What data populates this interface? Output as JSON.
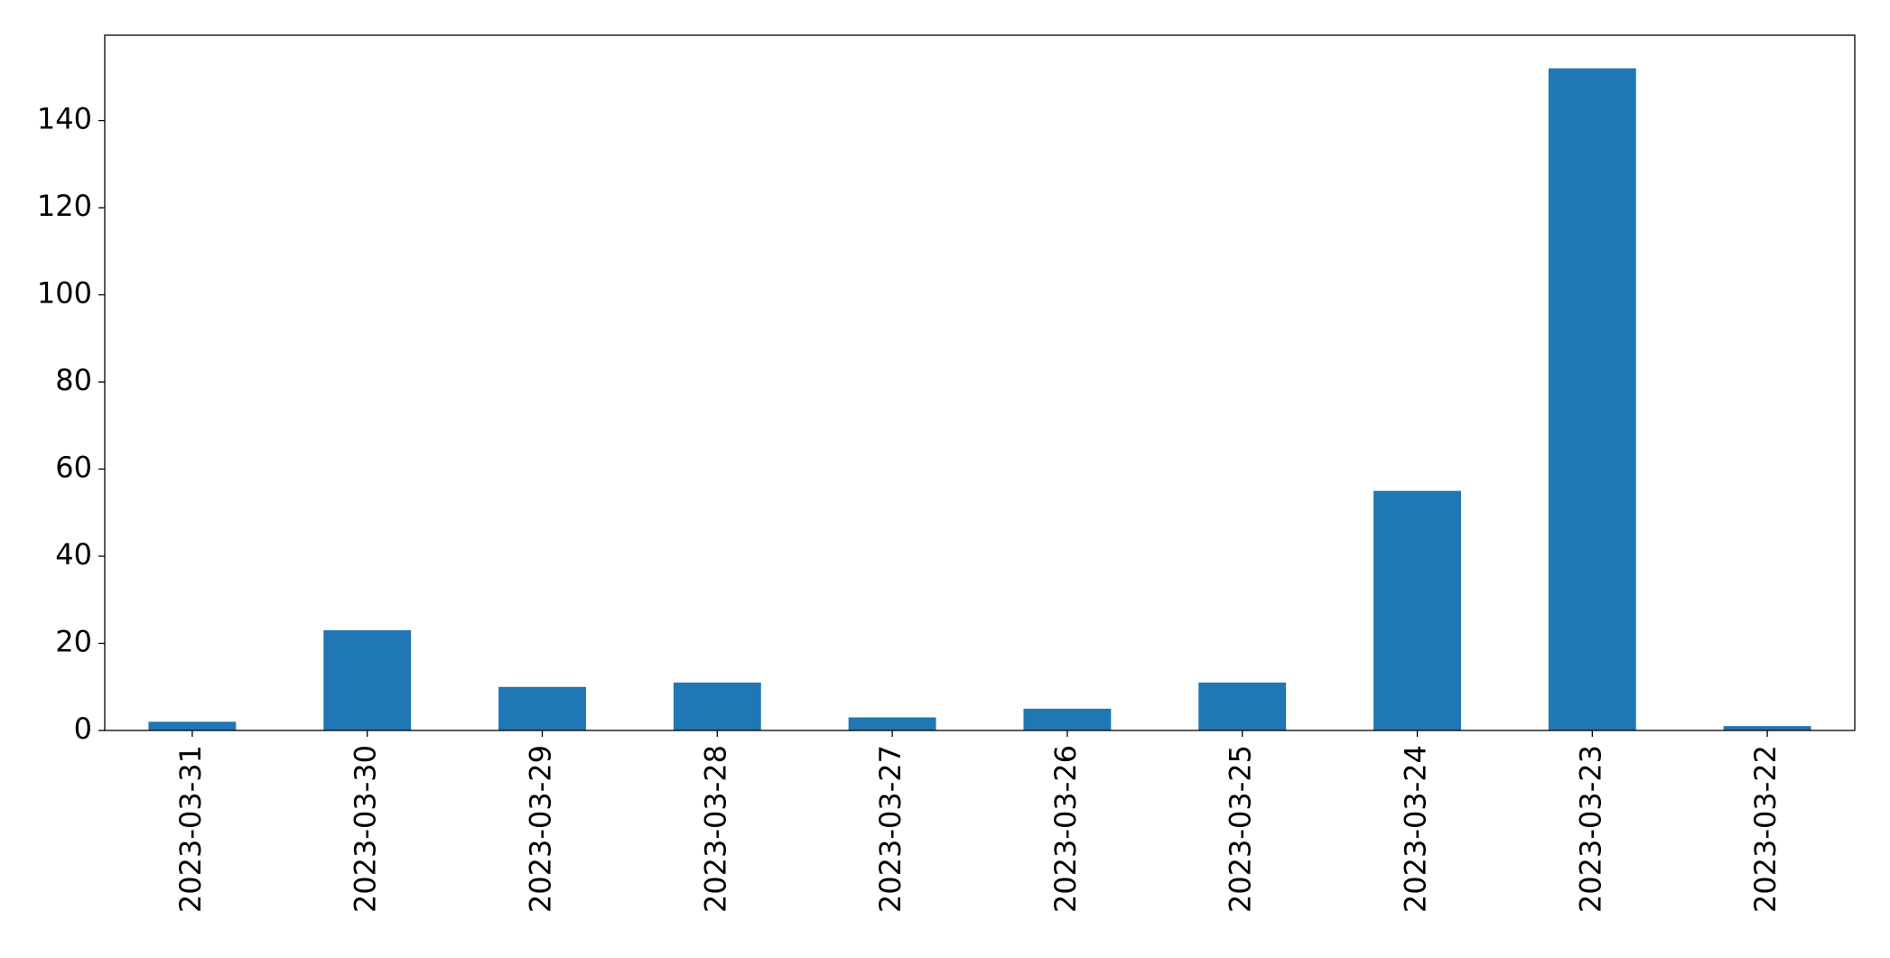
{
  "chart_data": {
    "type": "bar",
    "categories": [
      "2023-03-31",
      "2023-03-30",
      "2023-03-29",
      "2023-03-28",
      "2023-03-27",
      "2023-03-26",
      "2023-03-25",
      "2023-03-24",
      "2023-03-23",
      "2023-03-22"
    ],
    "values": [
      2,
      23,
      10,
      11,
      3,
      5,
      11,
      55,
      152,
      1
    ],
    "color": "#1f77b4",
    "ylim": [
      0,
      159.6
    ],
    "yticks": [
      0,
      20,
      40,
      60,
      80,
      100,
      120,
      140
    ],
    "grid": false
  }
}
